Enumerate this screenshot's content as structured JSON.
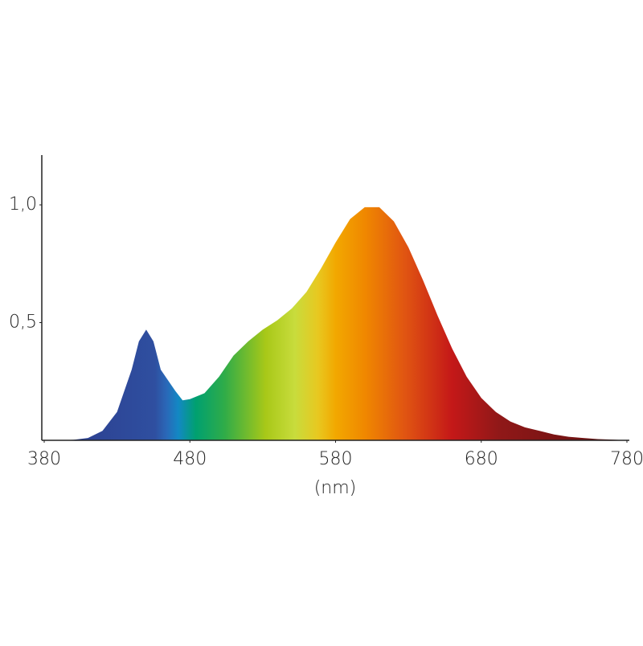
{
  "chart_data": {
    "type": "area",
    "x_label": "(nm)",
    "x": [
      380,
      390,
      400,
      410,
      420,
      430,
      440,
      445,
      450,
      455,
      460,
      470,
      475,
      480,
      490,
      500,
      510,
      520,
      530,
      540,
      550,
      560,
      570,
      580,
      590,
      600,
      610,
      620,
      630,
      640,
      650,
      660,
      670,
      680,
      690,
      700,
      710,
      720,
      730,
      740,
      750,
      760,
      770,
      780
    ],
    "values": [
      0,
      0,
      0.002,
      0.01,
      0.04,
      0.12,
      0.3,
      0.42,
      0.47,
      0.42,
      0.3,
      0.21,
      0.17,
      0.175,
      0.2,
      0.27,
      0.36,
      0.42,
      0.47,
      0.51,
      0.56,
      0.63,
      0.73,
      0.84,
      0.94,
      0.99,
      0.99,
      0.93,
      0.82,
      0.68,
      0.53,
      0.39,
      0.27,
      0.18,
      0.12,
      0.08,
      0.055,
      0.04,
      0.025,
      0.015,
      0.01,
      0.005,
      0.003,
      0
    ],
    "xlim": [
      380,
      780
    ],
    "ylim": [
      0,
      1.2
    ],
    "xticks": [
      380,
      480,
      580,
      680,
      780
    ],
    "yticks": [
      {
        "value": 0.5,
        "label": "0,5"
      },
      {
        "value": 1,
        "label": "1,0"
      }
    ]
  }
}
